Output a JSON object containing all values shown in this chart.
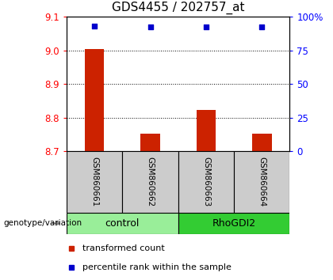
{
  "title": "GDS4455 / 202757_at",
  "samples": [
    "GSM860661",
    "GSM860662",
    "GSM860663",
    "GSM860664"
  ],
  "transformed_counts": [
    9.005,
    8.753,
    8.823,
    8.753
  ],
  "percentile_ranks": [
    93.0,
    92.5,
    92.5,
    92.5
  ],
  "ylim_left": [
    8.7,
    9.1
  ],
  "ylim_right": [
    0,
    100
  ],
  "yticks_left": [
    8.7,
    8.8,
    8.9,
    9.0,
    9.1
  ],
  "yticks_right": [
    0,
    25,
    50,
    75,
    100
  ],
  "ytick_labels_right": [
    "0",
    "25",
    "50",
    "75",
    "100%"
  ],
  "bar_color": "#cc2200",
  "dot_color": "#0000cc",
  "groups": [
    {
      "name": "control",
      "indices": [
        0,
        1
      ],
      "color": "#aaeea a"
    },
    {
      "name": "RhoGDI2",
      "indices": [
        2,
        3
      ],
      "color": "#33dd33"
    }
  ],
  "group_label": "genotype/variation",
  "legend_bar_label": "transformed count",
  "legend_dot_label": "percentile rank within the sample",
  "sample_box_color": "#cccccc",
  "control_color": "#99ee99",
  "rho_color": "#33cc33",
  "title_fontsize": 11,
  "tick_fontsize": 8.5
}
